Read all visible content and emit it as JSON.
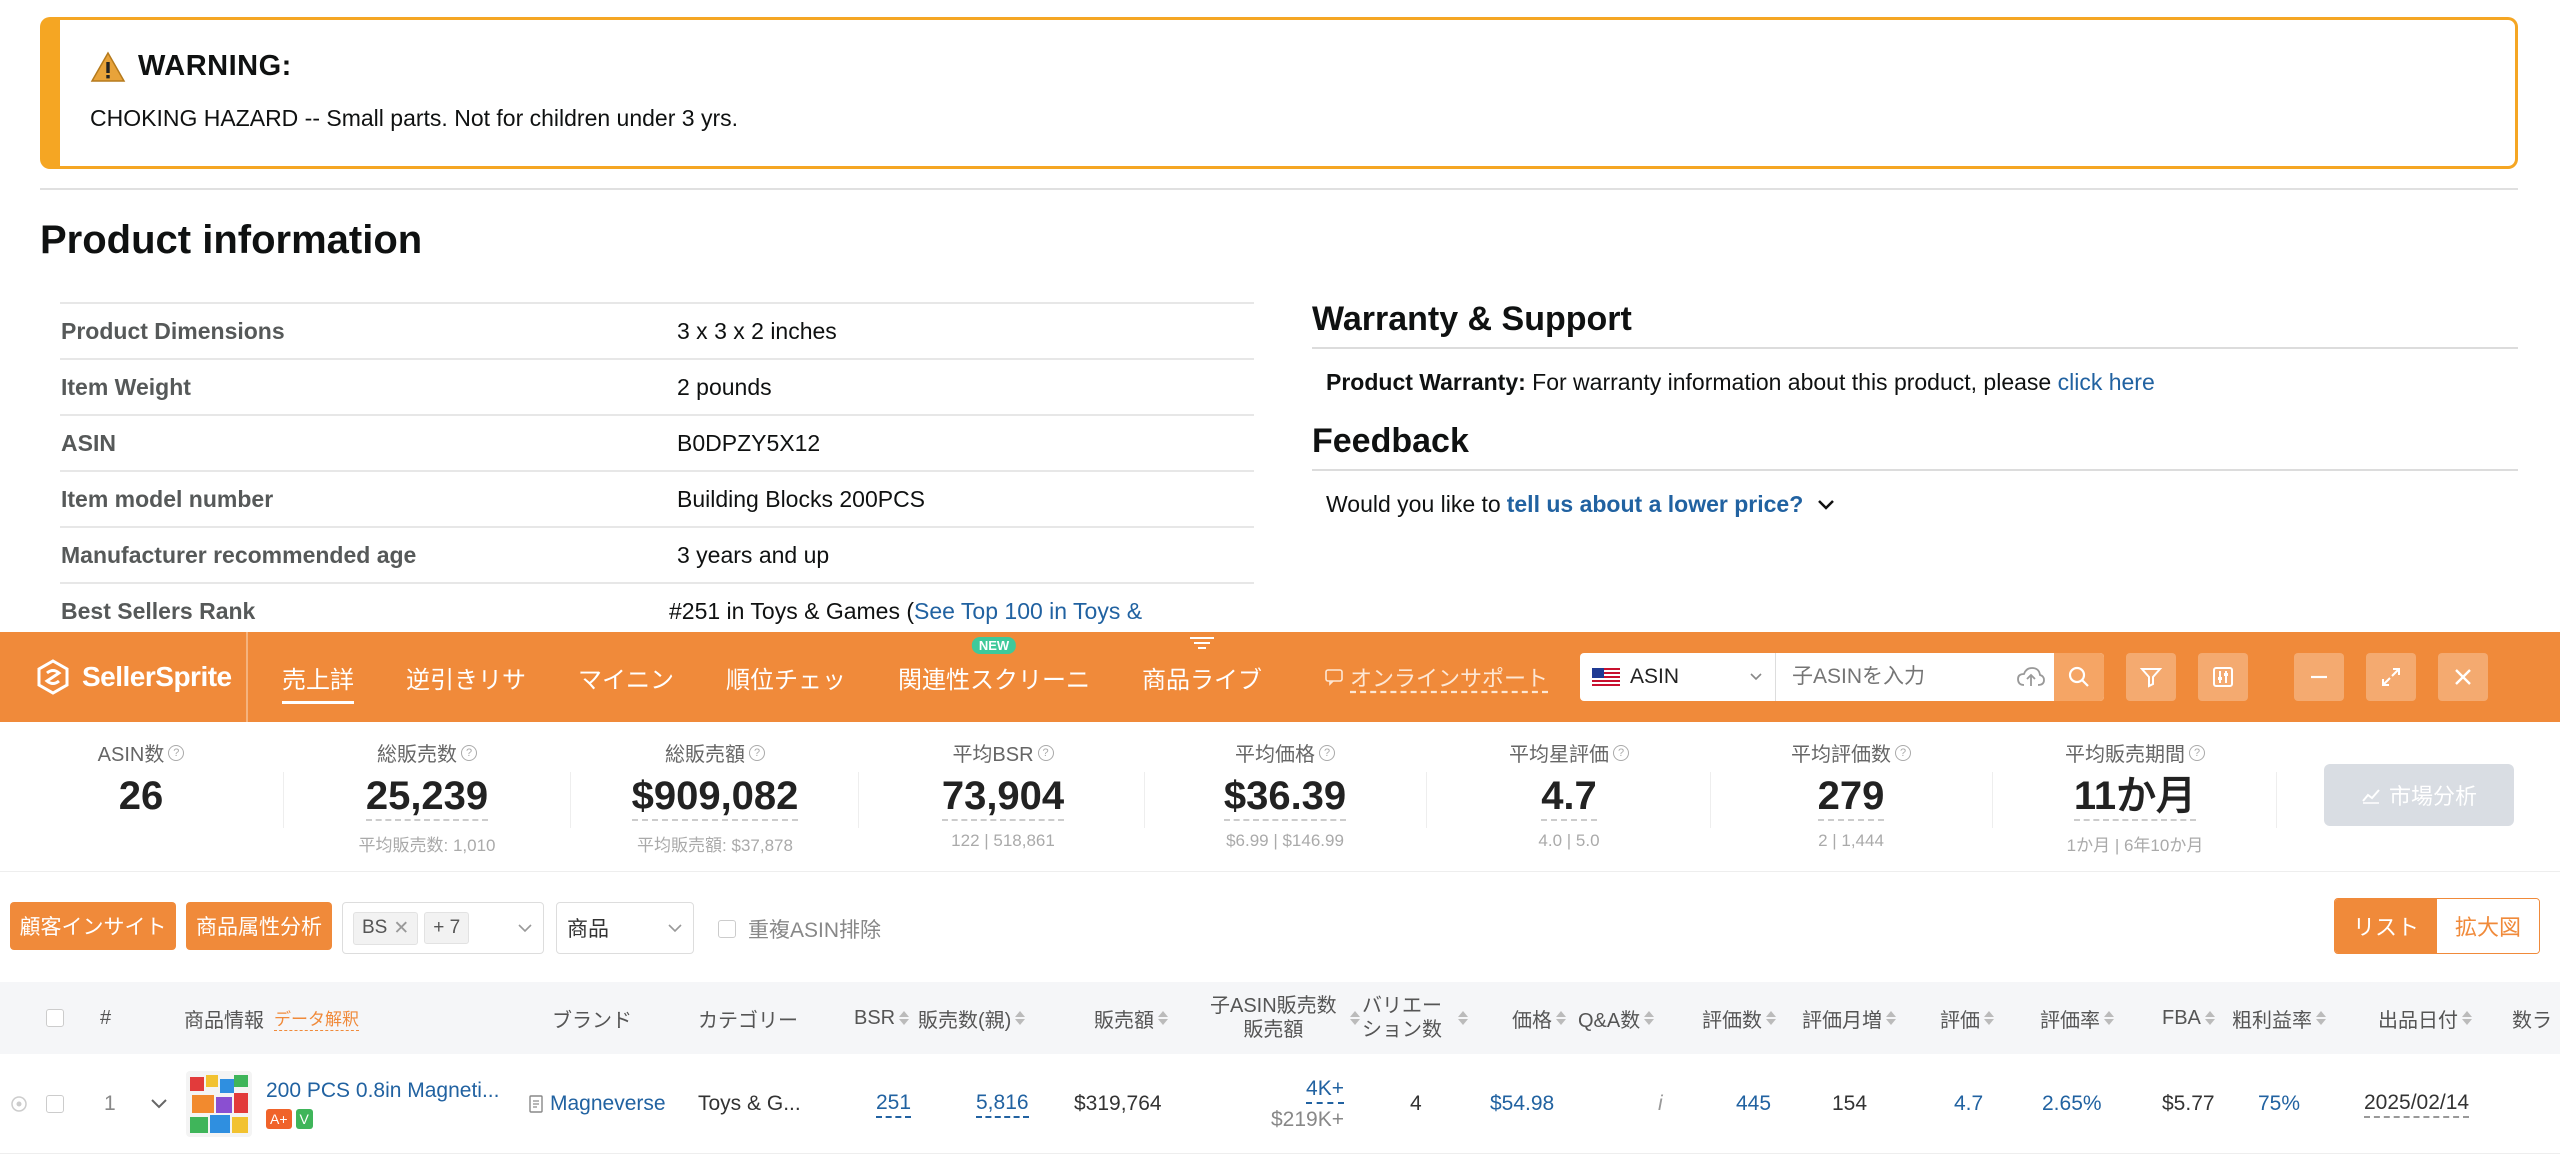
{
  "warning": {
    "title": "WARNING:",
    "text": "CHOKING HAZARD -- Small parts. Not for children under 3 yrs."
  },
  "product_info": {
    "title": "Product information",
    "specs": [
      {
        "key": "Product Dimensions",
        "value": "3 x 3 x 2 inches"
      },
      {
        "key": "Item Weight",
        "value": "2 pounds"
      },
      {
        "key": "ASIN",
        "value": "B0DPZY5X12"
      },
      {
        "key": "Item model number",
        "value": "Building Blocks 200PCS"
      },
      {
        "key": "Manufacturer recommended age",
        "value": "3 years and up"
      },
      {
        "key": "Best Sellers Rank",
        "value": "#251 in Toys & Games (",
        "link": "See Top 100 in Toys &"
      }
    ]
  },
  "warranty": {
    "title": "Warranty & Support",
    "label": "Product Warranty:",
    "text": "For warranty information about this product, please",
    "link": "click here"
  },
  "feedback": {
    "title": "Feedback",
    "text": "Would you like to",
    "link": "tell us about a lower price?"
  },
  "sellersprite": {
    "logo": "SellerSprite",
    "tabs": [
      {
        "label": "売上詳",
        "active": true,
        "new": false
      },
      {
        "label": "逆引きリサ",
        "active": false,
        "new": false
      },
      {
        "label": "マイニン",
        "active": false,
        "new": false
      },
      {
        "label": "順位チェッ",
        "active": false,
        "new": false
      },
      {
        "label": "関連性スクリーニ",
        "active": false,
        "new": true
      },
      {
        "label": "商品ライブ",
        "active": false,
        "new": false
      }
    ],
    "new_badge": "NEW",
    "support": "オンラインサポート",
    "market": "ASIN",
    "search_placeholder": "子ASINを入力"
  },
  "stats": [
    {
      "label": "ASIN数",
      "value": "26",
      "sub": ""
    },
    {
      "label": "総販売数",
      "value": "25,239",
      "sub": "平均販売数: 1,010"
    },
    {
      "label": "総販売額",
      "value": "$909,082",
      "sub": "平均販売額: $37,878"
    },
    {
      "label": "平均BSR",
      "value": "73,904",
      "sub": "122 | 518,861"
    },
    {
      "label": "平均価格",
      "value": "$36.39",
      "sub": "$6.99 | $146.99"
    },
    {
      "label": "平均星評価",
      "value": "4.7",
      "sub": "4.0 | 5.0"
    },
    {
      "label": "平均評価数",
      "value": "279",
      "sub": "2 | 1,444"
    },
    {
      "label": "平均販売期間",
      "value": "11か月",
      "sub": "1か月 | 6年10か月"
    }
  ],
  "market_analysis": "市場分析",
  "toolbar": {
    "customer_insight": "顧客インサイト",
    "attr_analysis": "商品属性分析",
    "tag_bs": "BS",
    "tag_more": "+ 7",
    "type_select": "商品",
    "dedupe": "重複ASIN排除",
    "view_list": "リスト",
    "view_zoom": "拡大図"
  },
  "table": {
    "headers": {
      "num": "#",
      "product": "商品情報",
      "data_explain": "データ解釈",
      "brand": "ブランド",
      "category": "カテゴリー",
      "bsr": "BSR",
      "sales_parent": "販売数(親)",
      "revenue": "販売額",
      "child_sales_1": "子ASIN販売数",
      "child_sales_2": "販売額",
      "variations_1": "バリエー",
      "variations_2": "ション数",
      "price": "価格",
      "qa": "Q&A数",
      "reviews": "評価数",
      "review_monthly": "評価月増",
      "rating": "評価",
      "review_rate": "評価率",
      "fba": "FBA",
      "margin": "粗利益率",
      "listing_date": "出品日付",
      "seller_count": "数ラ"
    },
    "rows": [
      {
        "num": "1",
        "title": "200 PCS 0.8in Magneti...",
        "badge_a": "A+",
        "badge_v": "V",
        "brand": "Magneverse",
        "category": "Toys & G...",
        "bsr": "251",
        "sales_parent": "5,816",
        "revenue": "$319,764",
        "child_sales": "4K+",
        "child_revenue": "$219K+",
        "variations": "4",
        "price": "$54.98",
        "qa": "i",
        "reviews": "445",
        "review_monthly": "154",
        "rating": "4.7",
        "review_rate": "2.65%",
        "fba": "$5.77",
        "margin": "75%",
        "listing_date": "2025/02/14"
      }
    ]
  },
  "colors": {
    "accent": "#f08a3a",
    "warning_border": "#f5a623",
    "link": "#2162a1"
  }
}
